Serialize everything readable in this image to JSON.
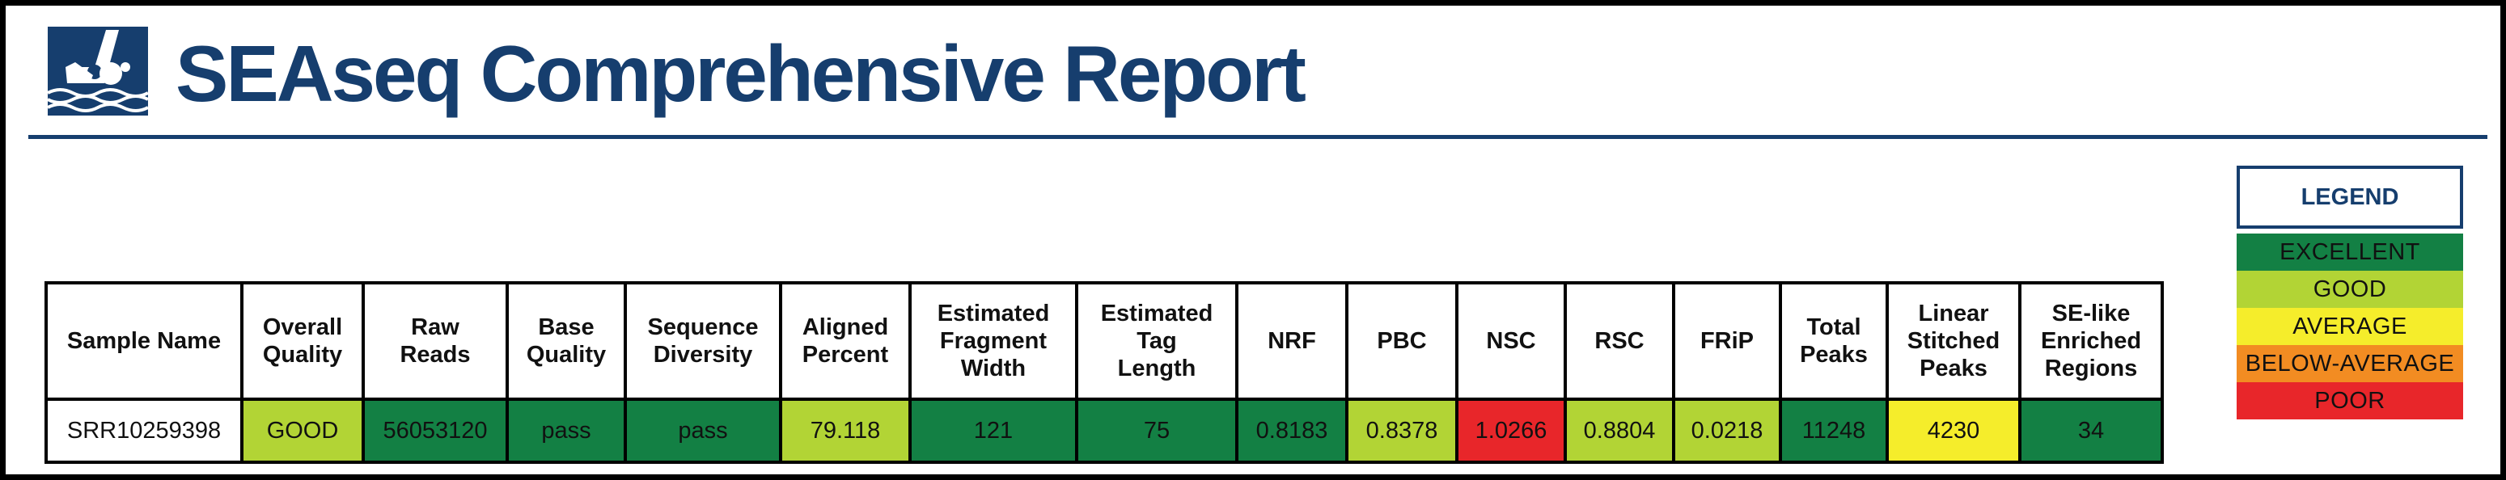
{
  "report": {
    "title": "SEAseq Comprehensive Report",
    "logo_icon": "seaseq-diver-waves-logo",
    "brand_color": "#163e6e"
  },
  "colors": {
    "excellent": "#138044",
    "good": "#b2d435",
    "average": "#f5ed2b",
    "below_average": "#f28c22",
    "poor": "#e8262a"
  },
  "table": {
    "headers": [
      "Sample Name",
      "Overall\nQuality",
      "Raw\nReads",
      "Base\nQuality",
      "Sequence\nDiversity",
      "Aligned\nPercent",
      "Estimated\nFragment\nWidth",
      "Estimated\nTag\nLength",
      "NRF",
      "PBC",
      "NSC",
      "RSC",
      "FRiP",
      "Total\nPeaks",
      "Linear\nStitched\nPeaks",
      "SE-like\nEnriched\nRegions"
    ],
    "rows": [
      {
        "cells": [
          {
            "value": "SRR10259398",
            "rating": "none"
          },
          {
            "value": "GOOD",
            "rating": "good"
          },
          {
            "value": "56053120",
            "rating": "excellent"
          },
          {
            "value": "pass",
            "rating": "excellent"
          },
          {
            "value": "pass",
            "rating": "excellent"
          },
          {
            "value": "79.118",
            "rating": "good"
          },
          {
            "value": "121",
            "rating": "excellent"
          },
          {
            "value": "75",
            "rating": "excellent"
          },
          {
            "value": "0.8183",
            "rating": "excellent"
          },
          {
            "value": "0.8378",
            "rating": "good"
          },
          {
            "value": "1.0266",
            "rating": "poor"
          },
          {
            "value": "0.8804",
            "rating": "good"
          },
          {
            "value": "0.0218",
            "rating": "good"
          },
          {
            "value": "11248",
            "rating": "excellent"
          },
          {
            "value": "4230",
            "rating": "average"
          },
          {
            "value": "34",
            "rating": "excellent"
          }
        ]
      }
    ]
  },
  "legend": {
    "title": "LEGEND",
    "items": [
      {
        "label": "EXCELLENT",
        "rating": "excellent"
      },
      {
        "label": "GOOD",
        "rating": "good"
      },
      {
        "label": "AVERAGE",
        "rating": "average"
      },
      {
        "label": "BELOW-AVERAGE",
        "rating": "below_average"
      },
      {
        "label": "POOR",
        "rating": "poor"
      }
    ]
  }
}
